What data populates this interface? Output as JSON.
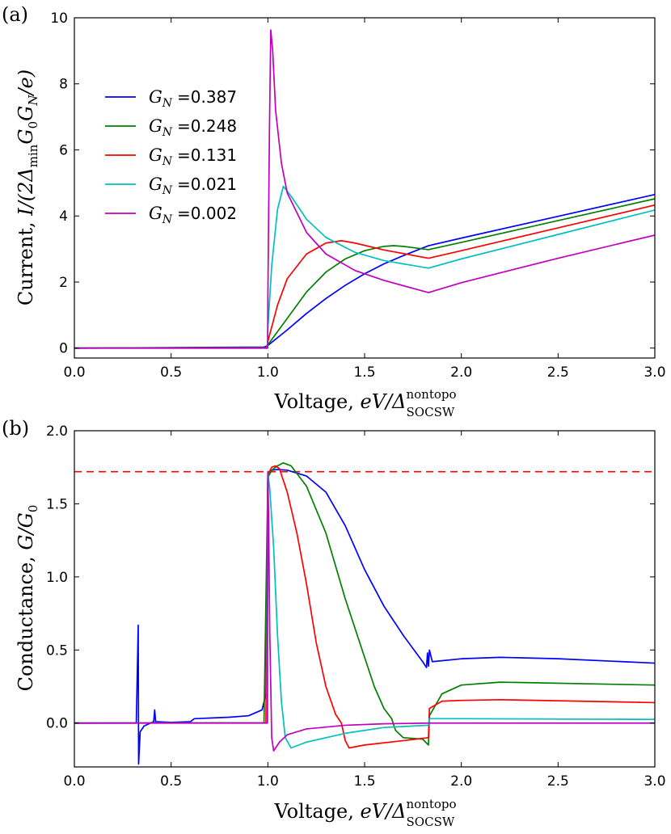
{
  "panels": {
    "a": {
      "label": "(a)"
    },
    "b": {
      "label": "(b)"
    }
  },
  "axis_text": {
    "voltage_prefix": "Voltage, ",
    "voltage_math": "eV/Δ",
    "voltage_sup": "nontopo",
    "voltage_sub": "SOCSW",
    "current_prefix": "Current, ",
    "current_math": "I/(2Δ",
    "current_sub": "min",
    "current_math2": "G",
    "current_sub0": "0",
    "current_math3": "G",
    "current_subN": "N",
    "current_math4": "/e)",
    "conductance_prefix": "Conductance, ",
    "conductance_math": "G/G",
    "conductance_sub": "0"
  },
  "legend": {
    "prefix": "G",
    "sub": "N",
    "eq": "=",
    "entries": [
      {
        "value": "0.387",
        "color": "#0000ff"
      },
      {
        "value": "0.248",
        "color": "#008000"
      },
      {
        "value": "0.131",
        "color": "#ff0000"
      },
      {
        "value": "0.021",
        "color": "#00bfbf"
      },
      {
        "value": "0.002",
        "color": "#bf00bf"
      }
    ]
  },
  "chart_data": [
    {
      "type": "line",
      "panel": "a",
      "xlim": [
        0,
        3
      ],
      "ylim": [
        -0.3,
        10
      ],
      "xticks": [
        "0.0",
        "0.5",
        "1.0",
        "1.5",
        "2.0",
        "2.5",
        "3.0"
      ],
      "xtick_values": [
        0,
        0.5,
        1,
        1.5,
        2,
        2.5,
        3
      ],
      "yticks": [
        "0",
        "2",
        "4",
        "6",
        "8",
        "10"
      ],
      "ytick_values": [
        0,
        2,
        4,
        6,
        8,
        10
      ],
      "series": [
        {
          "name": "G_N = 0.387",
          "color": "#0000ff",
          "points": [
            [
              0,
              0
            ],
            [
              0.98,
              0.03
            ],
            [
              1.0,
              0.08
            ],
            [
              1.1,
              0.55
            ],
            [
              1.2,
              1.05
            ],
            [
              1.3,
              1.5
            ],
            [
              1.4,
              1.9
            ],
            [
              1.5,
              2.25
            ],
            [
              1.6,
              2.55
            ],
            [
              1.7,
              2.8
            ],
            [
              1.83,
              3.1
            ],
            [
              2.0,
              3.33
            ],
            [
              2.5,
              3.99
            ],
            [
              3.0,
              4.65
            ]
          ]
        },
        {
          "name": "G_N = 0.248",
          "color": "#008000",
          "points": [
            [
              0,
              0
            ],
            [
              0.99,
              0.02
            ],
            [
              1.0,
              0.1
            ],
            [
              1.1,
              0.9
            ],
            [
              1.2,
              1.7
            ],
            [
              1.3,
              2.3
            ],
            [
              1.4,
              2.7
            ],
            [
              1.5,
              2.95
            ],
            [
              1.6,
              3.08
            ],
            [
              1.65,
              3.1
            ],
            [
              1.7,
              3.08
            ],
            [
              1.83,
              2.98
            ],
            [
              2.0,
              3.2
            ],
            [
              2.5,
              3.86
            ],
            [
              3.0,
              4.52
            ]
          ]
        },
        {
          "name": "G_N = 0.131",
          "color": "#ff0000",
          "points": [
            [
              0,
              0
            ],
            [
              0.995,
              0.01
            ],
            [
              1.0,
              0.2
            ],
            [
              1.05,
              1.3
            ],
            [
              1.1,
              2.1
            ],
            [
              1.2,
              2.85
            ],
            [
              1.3,
              3.18
            ],
            [
              1.38,
              3.25
            ],
            [
              1.45,
              3.18
            ],
            [
              1.6,
              2.97
            ],
            [
              1.83,
              2.72
            ],
            [
              2.0,
              2.95
            ],
            [
              2.5,
              3.64
            ],
            [
              3.0,
              4.33
            ]
          ]
        },
        {
          "name": "G_N = 0.021",
          "color": "#00bfbf",
          "points": [
            [
              0,
              0
            ],
            [
              0.998,
              0.0
            ],
            [
              1.0,
              0.6
            ],
            [
              1.02,
              2.5
            ],
            [
              1.05,
              4.2
            ],
            [
              1.08,
              4.9
            ],
            [
              1.12,
              4.6
            ],
            [
              1.2,
              3.9
            ],
            [
              1.3,
              3.35
            ],
            [
              1.45,
              2.9
            ],
            [
              1.6,
              2.65
            ],
            [
              1.83,
              2.42
            ],
            [
              2.0,
              2.7
            ],
            [
              2.5,
              3.44
            ],
            [
              3.0,
              4.18
            ]
          ]
        },
        {
          "name": "G_N = 0.002",
          "color": "#bf00bf",
          "points": [
            [
              0,
              0
            ],
            [
              0.999,
              0.0
            ],
            [
              1.0,
              1.5
            ],
            [
              1.008,
              6.5
            ],
            [
              1.015,
              9.63
            ],
            [
              1.025,
              9.0
            ],
            [
              1.04,
              7.2
            ],
            [
              1.07,
              5.6
            ],
            [
              1.1,
              4.7
            ],
            [
              1.2,
              3.5
            ],
            [
              1.3,
              2.85
            ],
            [
              1.45,
              2.35
            ],
            [
              1.6,
              2.05
            ],
            [
              1.83,
              1.68
            ],
            [
              2.0,
              1.98
            ],
            [
              2.5,
              2.72
            ],
            [
              3.0,
              3.42
            ]
          ]
        }
      ]
    },
    {
      "type": "line",
      "panel": "b",
      "xlim": [
        0,
        3
      ],
      "ylim": [
        -0.3,
        2
      ],
      "xticks": [
        "0.0",
        "0.5",
        "1.0",
        "1.5",
        "2.0",
        "2.5",
        "3.0"
      ],
      "xtick_values": [
        0,
        0.5,
        1,
        1.5,
        2,
        2.5,
        3
      ],
      "yticks": [
        "0.0",
        "0.5",
        "1.0",
        "1.5",
        "2.0"
      ],
      "ytick_values": [
        0,
        0.5,
        1,
        1.5,
        2
      ],
      "reference_line": {
        "y": 1.72,
        "color": "#ff0000",
        "style": "dashed"
      },
      "series": [
        {
          "name": "G_N = 0.387",
          "color": "#0000ff",
          "points": [
            [
              0,
              0
            ],
            [
              0.32,
              0
            ],
            [
              0.33,
              0.67
            ],
            [
              0.332,
              -0.28
            ],
            [
              0.34,
              -0.06
            ],
            [
              0.36,
              -0.02
            ],
            [
              0.41,
              0.01
            ],
            [
              0.415,
              0.09
            ],
            [
              0.42,
              0.01
            ],
            [
              0.5,
              0.005
            ],
            [
              0.6,
              0.01
            ],
            [
              0.62,
              0.03
            ],
            [
              0.8,
              0.04
            ],
            [
              0.9,
              0.05
            ],
            [
              0.97,
              0.09
            ],
            [
              0.99,
              0.2
            ],
            [
              1.0,
              1.7
            ],
            [
              1.02,
              1.73
            ],
            [
              1.05,
              1.735
            ],
            [
              1.1,
              1.73
            ],
            [
              1.2,
              1.69
            ],
            [
              1.3,
              1.58
            ],
            [
              1.4,
              1.35
            ],
            [
              1.5,
              1.05
            ],
            [
              1.6,
              0.8
            ],
            [
              1.7,
              0.6
            ],
            [
              1.8,
              0.42
            ],
            [
              1.82,
              0.38
            ],
            [
              1.825,
              0.48
            ],
            [
              1.83,
              0.39
            ],
            [
              1.835,
              0.5
            ],
            [
              1.85,
              0.42
            ],
            [
              2.0,
              0.44
            ],
            [
              2.2,
              0.45
            ],
            [
              2.5,
              0.44
            ],
            [
              3.0,
              0.41
            ]
          ]
        },
        {
          "name": "G_N = 0.248",
          "color": "#008000",
          "points": [
            [
              0,
              0
            ],
            [
              0.98,
              0.002
            ],
            [
              1.0,
              1.68
            ],
            [
              1.02,
              1.73
            ],
            [
              1.05,
              1.76
            ],
            [
              1.08,
              1.78
            ],
            [
              1.12,
              1.76
            ],
            [
              1.2,
              1.62
            ],
            [
              1.3,
              1.3
            ],
            [
              1.4,
              0.85
            ],
            [
              1.5,
              0.45
            ],
            [
              1.55,
              0.25
            ],
            [
              1.6,
              0.1
            ],
            [
              1.64,
              0.03
            ],
            [
              1.66,
              -0.05
            ],
            [
              1.7,
              -0.1
            ],
            [
              1.8,
              -0.11
            ],
            [
              1.83,
              -0.15
            ],
            [
              1.835,
              0.05
            ],
            [
              1.9,
              0.2
            ],
            [
              2.0,
              0.26
            ],
            [
              2.2,
              0.28
            ],
            [
              3.0,
              0.26
            ]
          ]
        },
        {
          "name": "G_N = 0.131",
          "color": "#ff0000",
          "points": [
            [
              0,
              0
            ],
            [
              0.99,
              0.002
            ],
            [
              1.0,
              1.7
            ],
            [
              1.02,
              1.75
            ],
            [
              1.04,
              1.76
            ],
            [
              1.06,
              1.74
            ],
            [
              1.1,
              1.58
            ],
            [
              1.15,
              1.3
            ],
            [
              1.2,
              0.95
            ],
            [
              1.25,
              0.55
            ],
            [
              1.3,
              0.25
            ],
            [
              1.35,
              0.06
            ],
            [
              1.38,
              0.0
            ],
            [
              1.4,
              -0.12
            ],
            [
              1.42,
              -0.17
            ],
            [
              1.5,
              -0.15
            ],
            [
              1.7,
              -0.12
            ],
            [
              1.83,
              -0.1
            ],
            [
              1.835,
              0.1
            ],
            [
              1.9,
              0.15
            ],
            [
              2.0,
              0.155
            ],
            [
              2.2,
              0.16
            ],
            [
              3.0,
              0.14
            ]
          ]
        },
        {
          "name": "G_N = 0.021",
          "color": "#00bfbf",
          "points": [
            [
              0,
              0
            ],
            [
              0.995,
              0.001
            ],
            [
              1.0,
              1.72
            ],
            [
              1.01,
              1.6
            ],
            [
              1.03,
              1.2
            ],
            [
              1.05,
              0.6
            ],
            [
              1.07,
              0.15
            ],
            [
              1.09,
              -0.1
            ],
            [
              1.12,
              -0.17
            ],
            [
              1.2,
              -0.13
            ],
            [
              1.4,
              -0.07
            ],
            [
              1.6,
              -0.03
            ],
            [
              1.83,
              -0.015
            ],
            [
              1.835,
              0.03
            ],
            [
              2.0,
              0.03
            ],
            [
              3.0,
              0.025
            ]
          ]
        },
        {
          "name": "G_N = 0.002",
          "color": "#bf00bf",
          "points": [
            [
              0,
              0
            ],
            [
              0.998,
              0
            ],
            [
              1.0,
              1.72
            ],
            [
              1.004,
              1.4
            ],
            [
              1.01,
              0.6
            ],
            [
              1.02,
              -0.1
            ],
            [
              1.03,
              -0.19
            ],
            [
              1.06,
              -0.13
            ],
            [
              1.1,
              -0.08
            ],
            [
              1.2,
              -0.04
            ],
            [
              1.4,
              -0.015
            ],
            [
              1.6,
              -0.005
            ],
            [
              1.83,
              0.0
            ],
            [
              3.0,
              0.0
            ]
          ]
        }
      ]
    }
  ]
}
